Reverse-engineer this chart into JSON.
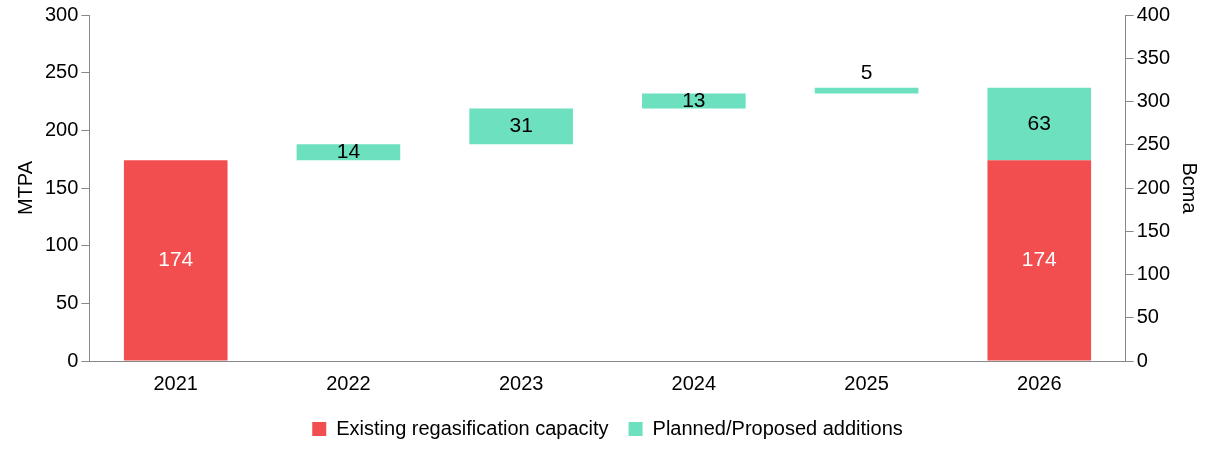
{
  "chart_data": {
    "type": "bar",
    "categories": [
      "2021",
      "2022",
      "2023",
      "2024",
      "2025",
      "2026"
    ],
    "series": [
      {
        "name": "Existing regasification capacity",
        "color": "#f24e4f",
        "values": [
          174,
          null,
          null,
          null,
          null,
          174
        ],
        "base": [
          0,
          null,
          null,
          null,
          null,
          0
        ]
      },
      {
        "name": "Planned/Proposed additions",
        "color": "#6de0c0",
        "values": [
          null,
          14,
          31,
          13,
          5,
          63
        ],
        "base": [
          null,
          174,
          188,
          219,
          232,
          174
        ]
      }
    ],
    "ylabel": "MTPA",
    "y2label": "Bcma",
    "ylim": [
      0,
      300
    ],
    "yticks": [
      0,
      50,
      100,
      150,
      200,
      250,
      300
    ],
    "y2lim": [
      0,
      400
    ],
    "y2ticks": [
      0,
      50,
      100,
      150,
      200,
      250,
      300,
      350,
      400
    ],
    "data_labels": true,
    "grid": false,
    "legend": "bottom"
  }
}
